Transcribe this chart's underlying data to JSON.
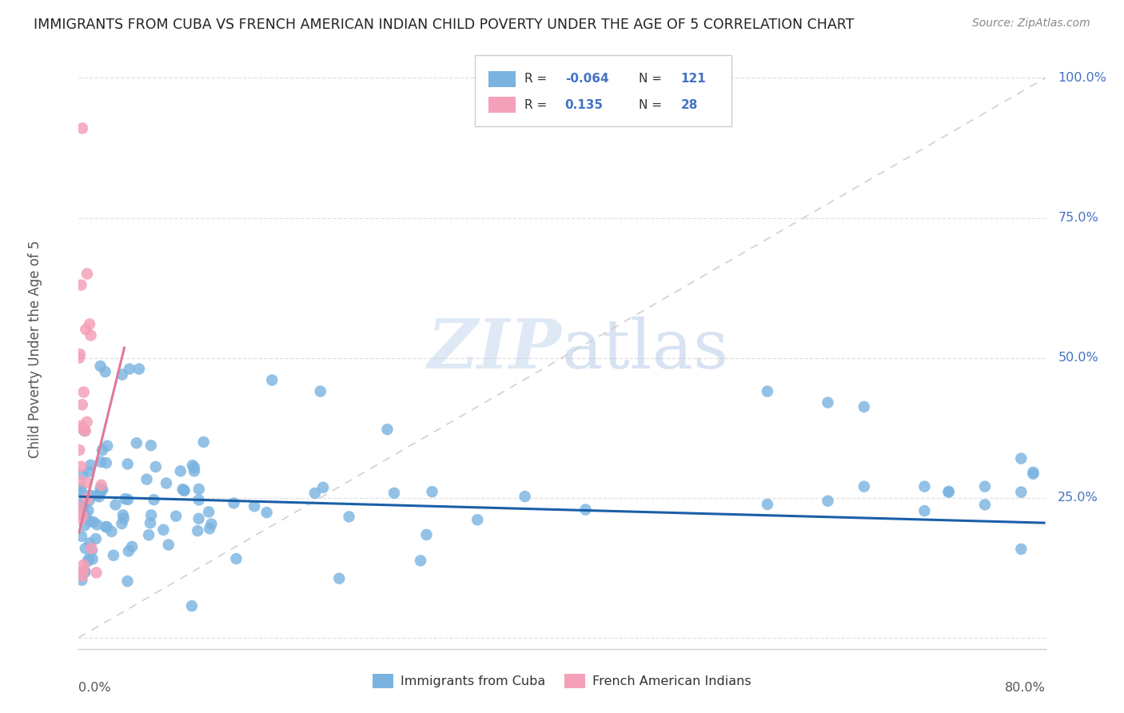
{
  "title": "IMMIGRANTS FROM CUBA VS FRENCH AMERICAN INDIAN CHILD POVERTY UNDER THE AGE OF 5 CORRELATION CHART",
  "source": "Source: ZipAtlas.com",
  "ylabel": "Child Poverty Under the Age of 5",
  "xmin": 0.0,
  "xmax": 0.8,
  "ymin": -0.02,
  "ymax": 1.05,
  "ytick_vals": [
    0.0,
    0.25,
    0.5,
    0.75,
    1.0
  ],
  "ytick_labels": [
    "",
    "25.0%",
    "50.0%",
    "75.0%",
    "100.0%"
  ],
  "R_blue": "-0.064",
  "N_blue": "121",
  "R_pink": "0.135",
  "N_pink": "28",
  "trend_blue_y0": 0.252,
  "trend_blue_y1": 0.205,
  "trend_pink_y0": 0.185,
  "trend_pink_y1": 0.52,
  "trend_pink_x0": 0.0,
  "trend_pink_x1": 0.038,
  "dot_color_blue": "#7ab3e0",
  "dot_color_pink": "#f4a0b8",
  "trend_blue_color": "#1a5fa8",
  "trend_pink_color": "#e07898",
  "grid_color": "#e0e0e0",
  "background_color": "#ffffff",
  "watermark": "ZIPatlas",
  "watermark_zip_color": "#c8d8f0",
  "watermark_atlas_color": "#b8c8e8",
  "legend_R_color": "#4472c4",
  "legend_N_color": "#4472c4",
  "ytick_color": "#4472c4",
  "xlabel_color": "#555555",
  "ylabel_color": "#555555",
  "title_color": "#222222",
  "source_color": "#888888"
}
